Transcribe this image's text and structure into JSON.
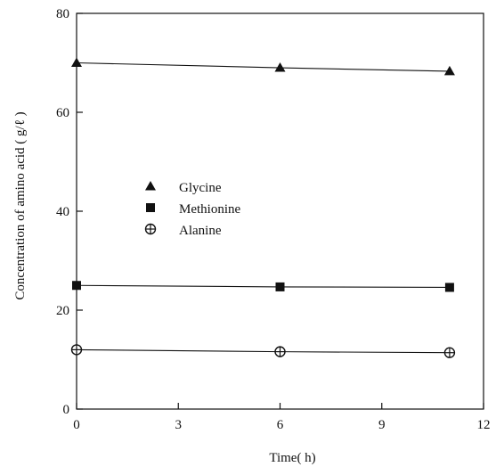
{
  "chart_data": {
    "type": "line",
    "xlabel": "Time( h)",
    "ylabel": "Concentration of amino acid ( g/ℓ )",
    "xlim": [
      0,
      12
    ],
    "ylim": [
      0,
      80
    ],
    "xticks": [
      0,
      3,
      6,
      9,
      12
    ],
    "yticks": [
      0,
      20,
      40,
      60,
      80
    ],
    "grid": false,
    "legend_position": "center-left",
    "series": [
      {
        "name": "Glycine",
        "marker": "triangle",
        "x": [
          0,
          6,
          11
        ],
        "y": [
          70,
          69,
          68.3
        ]
      },
      {
        "name": "Methionine",
        "marker": "square",
        "x": [
          0,
          6,
          11
        ],
        "y": [
          25,
          24.7,
          24.6
        ]
      },
      {
        "name": "Alanine",
        "marker": "circle-plus",
        "x": [
          0,
          6,
          11
        ],
        "y": [
          12,
          11.6,
          11.4
        ]
      }
    ]
  },
  "colors": {
    "ink": "#111111"
  }
}
